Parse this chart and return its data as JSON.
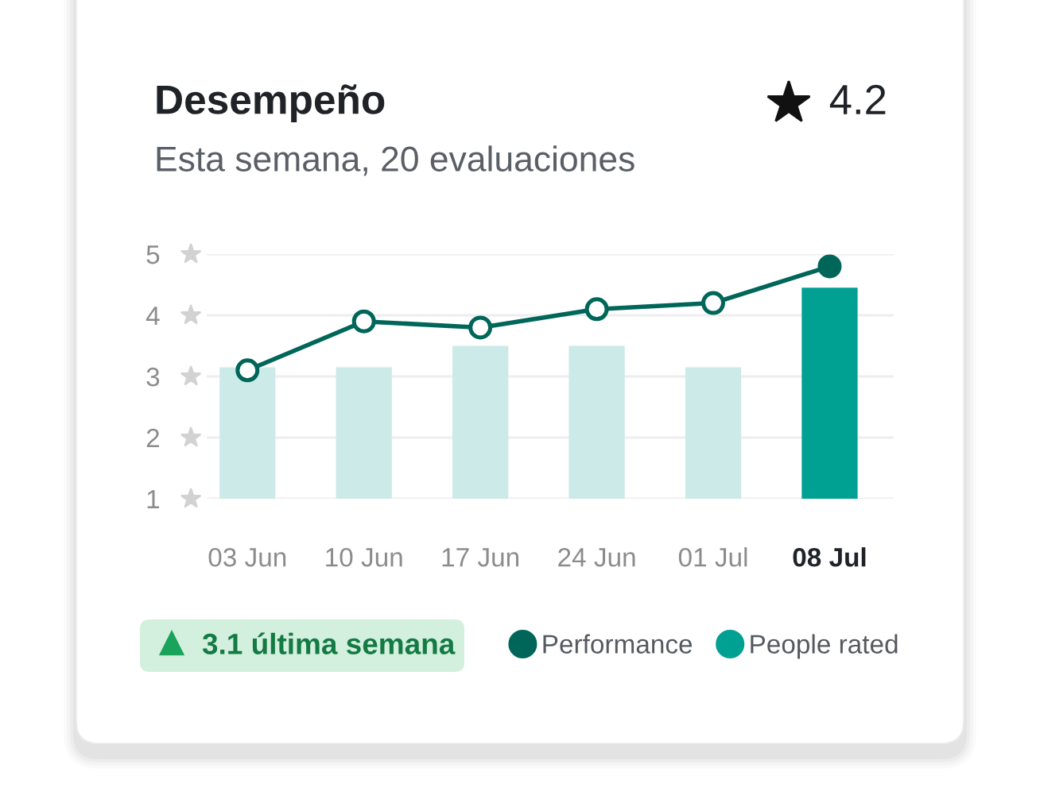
{
  "chart_data": {
    "type": "bar",
    "title": "Desempeño",
    "subtitle": "Esta semana, 20 evaluaciones",
    "categories": [
      "03 Jun",
      "10 Jun",
      "17 Jun",
      "24 Jun",
      "01 Jul",
      "08 Jul"
    ],
    "series": [
      {
        "name": "Performance",
        "type": "line",
        "color": "#00665a",
        "values": [
          3.1,
          3.9,
          3.8,
          4.1,
          4.2,
          4.8
        ]
      },
      {
        "name": "People rated",
        "color": "#00a193",
        "colors": [
          "#cceae7",
          "#cceae7",
          "#cceae7",
          "#cceae7",
          "#cceae7",
          "#00a193"
        ],
        "values": [
          3.15,
          3.15,
          3.5,
          3.5,
          3.15,
          4.45
        ]
      }
    ],
    "ylim": [
      1,
      5
    ],
    "yticks": [
      1,
      2,
      3,
      4,
      5
    ],
    "grid": "y",
    "legend": "bottom",
    "marker": "circle",
    "annotations": [
      "4.2",
      "3.1 última semana"
    ]
  }
}
